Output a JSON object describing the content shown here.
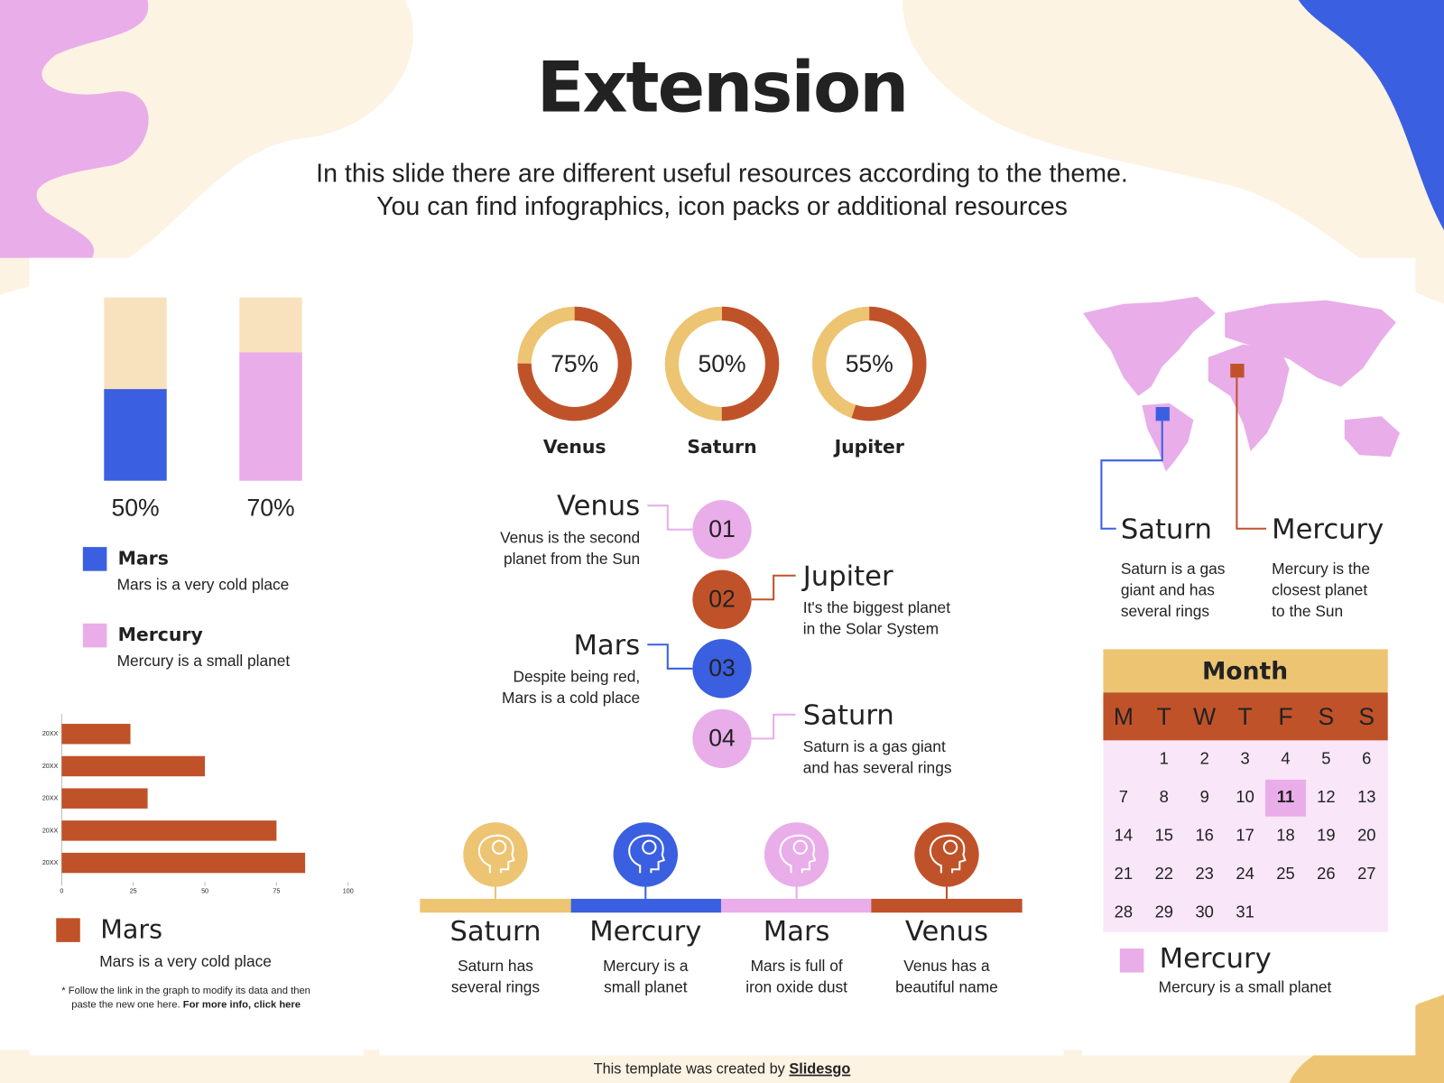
{
  "title": "Extension",
  "subtitle": [
    "In this slide there are different useful resources according to the theme.",
    "You can find infographics, icon packs or additional resources"
  ],
  "progress_bars": {
    "values": [
      50,
      70
    ],
    "value_labels": [
      "50%",
      "70%"
    ],
    "colors": [
      "#3a5fe0",
      "#e9ade9"
    ],
    "track_color": "#f8e2bd",
    "legend": [
      {
        "name": "Mars",
        "text": "Mars is a very cold place"
      },
      {
        "name": "Mercury",
        "text": "Mercury is a small planet"
      }
    ]
  },
  "chart_data": {
    "type": "hbar",
    "categories": [
      "20XX",
      "20XX",
      "20XX",
      "20XX",
      "20XX"
    ],
    "values": [
      24,
      50,
      30,
      75,
      85
    ],
    "color": "#c0522a",
    "xlim": [
      0,
      100
    ],
    "xticks": [
      0,
      25,
      50,
      75,
      100
    ],
    "legend": {
      "name": "Mars",
      "text": "Mars is a very cold place"
    }
  },
  "note": {
    "lines": [
      "* Follow the link in the graph to modify its data and then",
      "paste the new one here."
    ],
    "link": "For more info, click here"
  },
  "donuts": {
    "values": [
      75,
      50,
      55
    ],
    "value_labels": [
      "75%",
      "50%",
      "55%"
    ],
    "names": [
      "Venus",
      "Saturn",
      "Jupiter"
    ],
    "color": "#c0522a",
    "track_color": "#ecc472"
  },
  "timeline": [
    {
      "number": "01",
      "name": "Venus",
      "text": [
        "Venus is the second",
        "planet from the Sun"
      ],
      "color": "#e9ade9"
    },
    {
      "number": "02",
      "name": "Jupiter",
      "text": [
        "It's the biggest planet",
        "in the Solar System"
      ],
      "color": "#c0522a"
    },
    {
      "number": "03",
      "name": "Mars",
      "text": [
        "Despite being red,",
        "Mars is a cold place"
      ],
      "color": "#3a5fe0"
    },
    {
      "number": "04",
      "name": "Saturn",
      "text": [
        "Saturn is a gas giant",
        "and has several rings"
      ],
      "color": "#e9ade9"
    }
  ],
  "icons": [
    {
      "name": "Saturn",
      "text": [
        "Saturn has",
        "several rings"
      ],
      "color": "#ecc472"
    },
    {
      "name": "Mercury",
      "text": [
        "Mercury is a",
        "small planet"
      ],
      "color": "#3a5fe0"
    },
    {
      "name": "Mars",
      "text": [
        "Mars is full of",
        "iron oxide dust"
      ],
      "color": "#e9ade9"
    },
    {
      "name": "Venus",
      "text": [
        "Venus has a",
        "beautiful name"
      ],
      "color": "#c0522a"
    }
  ],
  "map": {
    "markers": [
      {
        "name": "Saturn",
        "text": [
          "Saturn is a gas",
          "giant and has",
          "several rings"
        ],
        "color": "#3a5fe0"
      },
      {
        "name": "Mercury",
        "text": [
          "Mercury is the",
          "closest planet",
          "to the Sun"
        ],
        "color": "#c0522a"
      }
    ]
  },
  "calendar": {
    "title": "Month",
    "weekdays": [
      "M",
      "T",
      "W",
      "T",
      "F",
      "S",
      "S"
    ],
    "days": [
      1,
      2,
      3,
      4,
      5,
      6,
      7,
      8,
      9,
      10,
      11,
      12,
      13,
      14,
      15,
      16,
      17,
      18,
      19,
      20,
      21,
      22,
      23,
      24,
      25,
      26,
      27,
      28,
      29,
      30,
      31
    ],
    "highlight": 11,
    "legend": {
      "name": "Mercury",
      "text": "Mercury is a small planet"
    }
  },
  "footer": {
    "text": "This template was created by",
    "link": "Slidesgo"
  }
}
